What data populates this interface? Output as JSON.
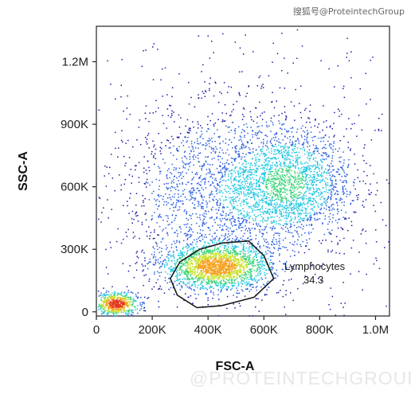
{
  "watermarks": {
    "top": "搜狐号@ProteintechGroup",
    "bottom": "@PROTEINTECHGROUP"
  },
  "chart_data": {
    "type": "scatter",
    "title": "",
    "xlabel": "FSC-A",
    "ylabel": "SSC-A",
    "xlim": [
      0,
      1050000
    ],
    "ylim": [
      -20000,
      1370000
    ],
    "x_ticks": [
      {
        "value": 0,
        "label": "0"
      },
      {
        "value": 200000,
        "label": "200K"
      },
      {
        "value": 400000,
        "label": "400K"
      },
      {
        "value": 600000,
        "label": "600K"
      },
      {
        "value": 800000,
        "label": "800K"
      },
      {
        "value": 1000000,
        "label": "1.0M"
      }
    ],
    "y_ticks": [
      {
        "value": 0,
        "label": "0"
      },
      {
        "value": 300000,
        "label": "300K"
      },
      {
        "value": 600000,
        "label": "600K"
      },
      {
        "value": 900000,
        "label": "900K"
      },
      {
        "value": 1200000,
        "label": "1.2M"
      }
    ],
    "colormap": [
      "#1a1aa8",
      "#2a5fe0",
      "#22c6e0",
      "#3bd47a",
      "#c8e22a",
      "#f5a21e",
      "#e0351a"
    ],
    "populations": [
      {
        "name": "debris",
        "center": [
          70000,
          40000
        ],
        "spread": [
          38000,
          28000
        ],
        "weight": 0.09
      },
      {
        "name": "lymphocytes",
        "center": [
          430000,
          220000
        ],
        "spread": [
          95000,
          55000
        ],
        "weight": 0.3
      },
      {
        "name": "granulocytes",
        "center": [
          690000,
          620000
        ],
        "spread": [
          110000,
          130000
        ],
        "weight": 0.26
      },
      {
        "name": "monocytes",
        "center": [
          450000,
          560000
        ],
        "spread": [
          170000,
          190000
        ],
        "weight": 0.2
      },
      {
        "name": "background",
        "center": [
          500000,
          600000
        ],
        "spread": [
          300000,
          350000
        ],
        "weight": 0.15
      }
    ],
    "gate": {
      "label": "Lymphocytes",
      "value": "34.3",
      "color": "#1a1a1a",
      "vertices": [
        [
          300000,
          240000
        ],
        [
          370000,
          300000
        ],
        [
          450000,
          330000
        ],
        [
          545000,
          340000
        ],
        [
          600000,
          270000
        ],
        [
          635000,
          160000
        ],
        [
          565000,
          70000
        ],
        [
          450000,
          30000
        ],
        [
          360000,
          20000
        ],
        [
          290000,
          80000
        ],
        [
          265000,
          160000
        ]
      ]
    }
  }
}
